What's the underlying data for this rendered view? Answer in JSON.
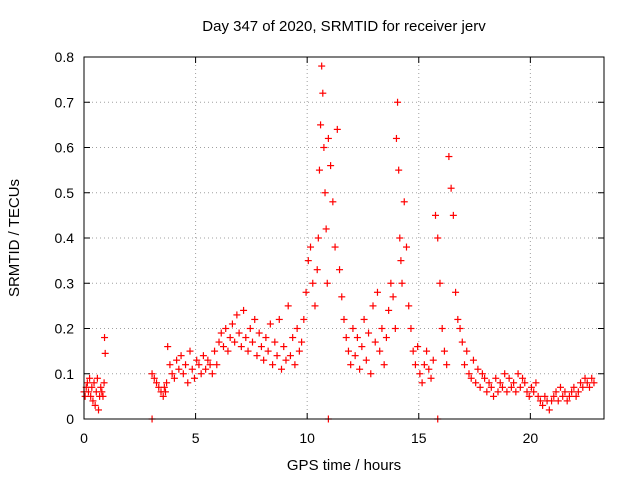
{
  "chart_data": {
    "type": "scatter",
    "title": "Day 347 of 2020, SRMTID for receiver jerv",
    "xlabel": "GPS time / hours",
    "ylabel": "SRMTID / TECUs",
    "xlim": [
      0,
      23.3
    ],
    "ylim": [
      0,
      0.8
    ],
    "grid": true,
    "marker": "+",
    "color": "#ff0000",
    "x_ticks": [
      0,
      5,
      10,
      15,
      20
    ],
    "x_tick_labels": [
      "0",
      "5",
      "10",
      "15",
      "20"
    ],
    "y_ticks": [
      0,
      0.1,
      0.2,
      0.3,
      0.4,
      0.5,
      0.6,
      0.7,
      0.8
    ],
    "y_tick_labels": [
      "0",
      "0.1",
      "0.2",
      "0.3",
      "0.4",
      "0.5",
      "0.6",
      "0.7",
      "0.8"
    ],
    "series": [
      {
        "name": "SRMTID",
        "x": [
          0.0,
          0.05,
          0.1,
          0.15,
          0.2,
          0.25,
          0.3,
          0.35,
          0.4,
          0.45,
          0.5,
          0.55,
          0.6,
          0.65,
          0.7,
          0.75,
          0.8,
          0.85,
          0.9,
          0.92,
          0.95,
          3.05,
          3.15,
          3.25,
          3.35,
          3.45,
          3.55,
          3.6,
          3.65,
          3.7,
          3.75,
          3.85,
          3.95,
          4.05,
          4.15,
          4.25,
          4.35,
          4.45,
          4.55,
          4.65,
          4.75,
          4.85,
          4.95,
          5.05,
          5.15,
          5.25,
          5.35,
          5.45,
          5.55,
          5.65,
          5.75,
          5.85,
          5.95,
          6.05,
          6.15,
          6.25,
          6.35,
          6.45,
          6.55,
          6.65,
          6.75,
          6.85,
          6.95,
          7.05,
          7.15,
          7.25,
          7.35,
          7.45,
          7.55,
          7.65,
          7.75,
          7.85,
          7.95,
          8.05,
          8.15,
          8.25,
          8.35,
          8.45,
          8.55,
          8.65,
          8.75,
          8.85,
          8.95,
          9.05,
          9.15,
          9.25,
          9.35,
          9.45,
          9.55,
          9.65,
          9.75,
          9.85,
          9.95,
          10.05,
          10.15,
          10.25,
          10.35,
          10.45,
          10.5,
          10.55,
          10.6,
          10.65,
          10.7,
          10.75,
          10.8,
          10.85,
          10.9,
          10.95,
          11.05,
          11.15,
          11.25,
          11.35,
          11.45,
          11.55,
          11.65,
          11.75,
          11.85,
          11.95,
          12.05,
          12.15,
          12.25,
          12.35,
          12.45,
          12.55,
          12.65,
          12.75,
          12.85,
          12.95,
          13.05,
          13.15,
          13.25,
          13.35,
          13.45,
          13.55,
          13.65,
          13.75,
          13.85,
          13.95,
          14.0,
          14.05,
          14.1,
          14.15,
          14.2,
          14.25,
          14.35,
          14.45,
          14.55,
          14.65,
          14.75,
          14.85,
          14.95,
          15.05,
          15.15,
          15.25,
          15.35,
          15.45,
          15.55,
          15.65,
          15.75,
          15.85,
          15.95,
          16.05,
          16.15,
          16.25,
          16.35,
          16.45,
          16.55,
          16.65,
          16.75,
          16.85,
          16.95,
          17.05,
          17.15,
          17.25,
          17.35,
          17.45,
          17.55,
          17.65,
          17.75,
          17.85,
          17.95,
          18.05,
          18.15,
          18.25,
          18.35,
          18.45,
          18.55,
          18.65,
          18.75,
          18.85,
          18.95,
          19.05,
          19.15,
          19.25,
          19.35,
          19.45,
          19.55,
          19.65,
          19.75,
          19.85,
          19.95,
          20.05,
          20.15,
          20.25,
          20.35,
          20.45,
          20.55,
          20.65,
          20.75,
          20.85,
          20.95,
          21.05,
          21.15,
          21.25,
          21.35,
          21.45,
          21.55,
          21.65,
          21.75,
          21.85,
          21.95,
          22.05,
          22.15,
          22.25,
          22.35,
          22.45,
          22.55,
          22.65,
          22.75,
          22.85,
          3.05,
          10.95,
          15.85
        ],
        "y": [
          0.06,
          0.05,
          0.07,
          0.08,
          0.06,
          0.09,
          0.05,
          0.07,
          0.04,
          0.08,
          0.03,
          0.06,
          0.09,
          0.02,
          0.05,
          0.07,
          0.06,
          0.05,
          0.08,
          0.18,
          0.145,
          0.1,
          0.09,
          0.08,
          0.07,
          0.06,
          0.05,
          0.07,
          0.06,
          0.08,
          0.16,
          0.12,
          0.1,
          0.09,
          0.13,
          0.11,
          0.14,
          0.1,
          0.12,
          0.08,
          0.15,
          0.11,
          0.09,
          0.13,
          0.12,
          0.1,
          0.14,
          0.11,
          0.13,
          0.12,
          0.1,
          0.15,
          0.12,
          0.17,
          0.19,
          0.16,
          0.2,
          0.15,
          0.18,
          0.21,
          0.17,
          0.23,
          0.19,
          0.16,
          0.24,
          0.18,
          0.15,
          0.2,
          0.17,
          0.22,
          0.14,
          0.19,
          0.16,
          0.13,
          0.18,
          0.15,
          0.21,
          0.12,
          0.17,
          0.14,
          0.22,
          0.11,
          0.16,
          0.13,
          0.25,
          0.14,
          0.18,
          0.12,
          0.2,
          0.15,
          0.17,
          0.22,
          0.28,
          0.35,
          0.38,
          0.3,
          0.25,
          0.33,
          0.4,
          0.55,
          0.65,
          0.78,
          0.72,
          0.6,
          0.5,
          0.42,
          0.3,
          0.62,
          0.56,
          0.48,
          0.38,
          0.64,
          0.33,
          0.27,
          0.22,
          0.18,
          0.15,
          0.12,
          0.2,
          0.14,
          0.18,
          0.11,
          0.16,
          0.22,
          0.13,
          0.19,
          0.1,
          0.25,
          0.17,
          0.28,
          0.15,
          0.2,
          0.12,
          0.18,
          0.24,
          0.3,
          0.27,
          0.2,
          0.62,
          0.7,
          0.55,
          0.4,
          0.35,
          0.3,
          0.48,
          0.38,
          0.25,
          0.2,
          0.15,
          0.12,
          0.16,
          0.1,
          0.08,
          0.12,
          0.15,
          0.11,
          0.09,
          0.13,
          0.45,
          0.4,
          0.3,
          0.2,
          0.15,
          0.12,
          0.58,
          0.51,
          0.45,
          0.28,
          0.22,
          0.2,
          0.17,
          0.12,
          0.15,
          0.1,
          0.09,
          0.13,
          0.08,
          0.11,
          0.07,
          0.1,
          0.09,
          0.06,
          0.08,
          0.07,
          0.05,
          0.09,
          0.06,
          0.08,
          0.07,
          0.1,
          0.06,
          0.09,
          0.07,
          0.08,
          0.06,
          0.1,
          0.07,
          0.09,
          0.08,
          0.06,
          0.05,
          0.07,
          0.06,
          0.08,
          0.05,
          0.04,
          0.03,
          0.05,
          0.04,
          0.02,
          0.04,
          0.05,
          0.06,
          0.04,
          0.07,
          0.05,
          0.06,
          0.04,
          0.05,
          0.06,
          0.07,
          0.05,
          0.06,
          0.08,
          0.07,
          0.09,
          0.08,
          0.07,
          0.09,
          0.08,
          0.0,
          0.0,
          0.0
        ]
      }
    ]
  }
}
